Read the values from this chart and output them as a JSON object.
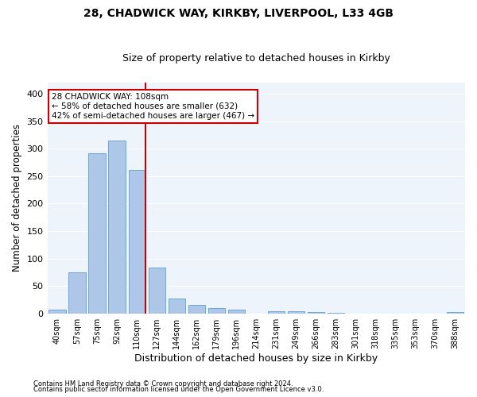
{
  "title1": "28, CHADWICK WAY, KIRKBY, LIVERPOOL, L33 4GB",
  "title2": "Size of property relative to detached houses in Kirkby",
  "xlabel": "Distribution of detached houses by size in Kirkby",
  "ylabel": "Number of detached properties",
  "categories": [
    "40sqm",
    "57sqm",
    "75sqm",
    "92sqm",
    "110sqm",
    "127sqm",
    "144sqm",
    "162sqm",
    "179sqm",
    "196sqm",
    "214sqm",
    "231sqm",
    "249sqm",
    "266sqm",
    "283sqm",
    "301sqm",
    "318sqm",
    "335sqm",
    "353sqm",
    "370sqm",
    "388sqm"
  ],
  "values": [
    7,
    75,
    292,
    315,
    262,
    84,
    27,
    15,
    9,
    7,
    0,
    4,
    4,
    3,
    1,
    0,
    0,
    0,
    0,
    0,
    2
  ],
  "bar_color": "#aec6e8",
  "bar_edge_color": "#5a9fd4",
  "vline_idx": 4,
  "vline_color": "#cc0000",
  "annotation_lines": [
    "28 CHADWICK WAY: 108sqm",
    "← 58% of detached houses are smaller (632)",
    "42% of semi-detached houses are larger (467) →"
  ],
  "annotation_box_color": "#cc0000",
  "ylim": [
    0,
    420
  ],
  "footnote1": "Contains HM Land Registry data © Crown copyright and database right 2024.",
  "footnote2": "Contains public sector information licensed under the Open Government Licence v3.0.",
  "background_color": "#eef4fb",
  "grid_color": "#ffffff",
  "title1_fontsize": 10,
  "title2_fontsize": 9,
  "tick_fontsize": 7,
  "ylabel_fontsize": 8.5,
  "xlabel_fontsize": 9
}
